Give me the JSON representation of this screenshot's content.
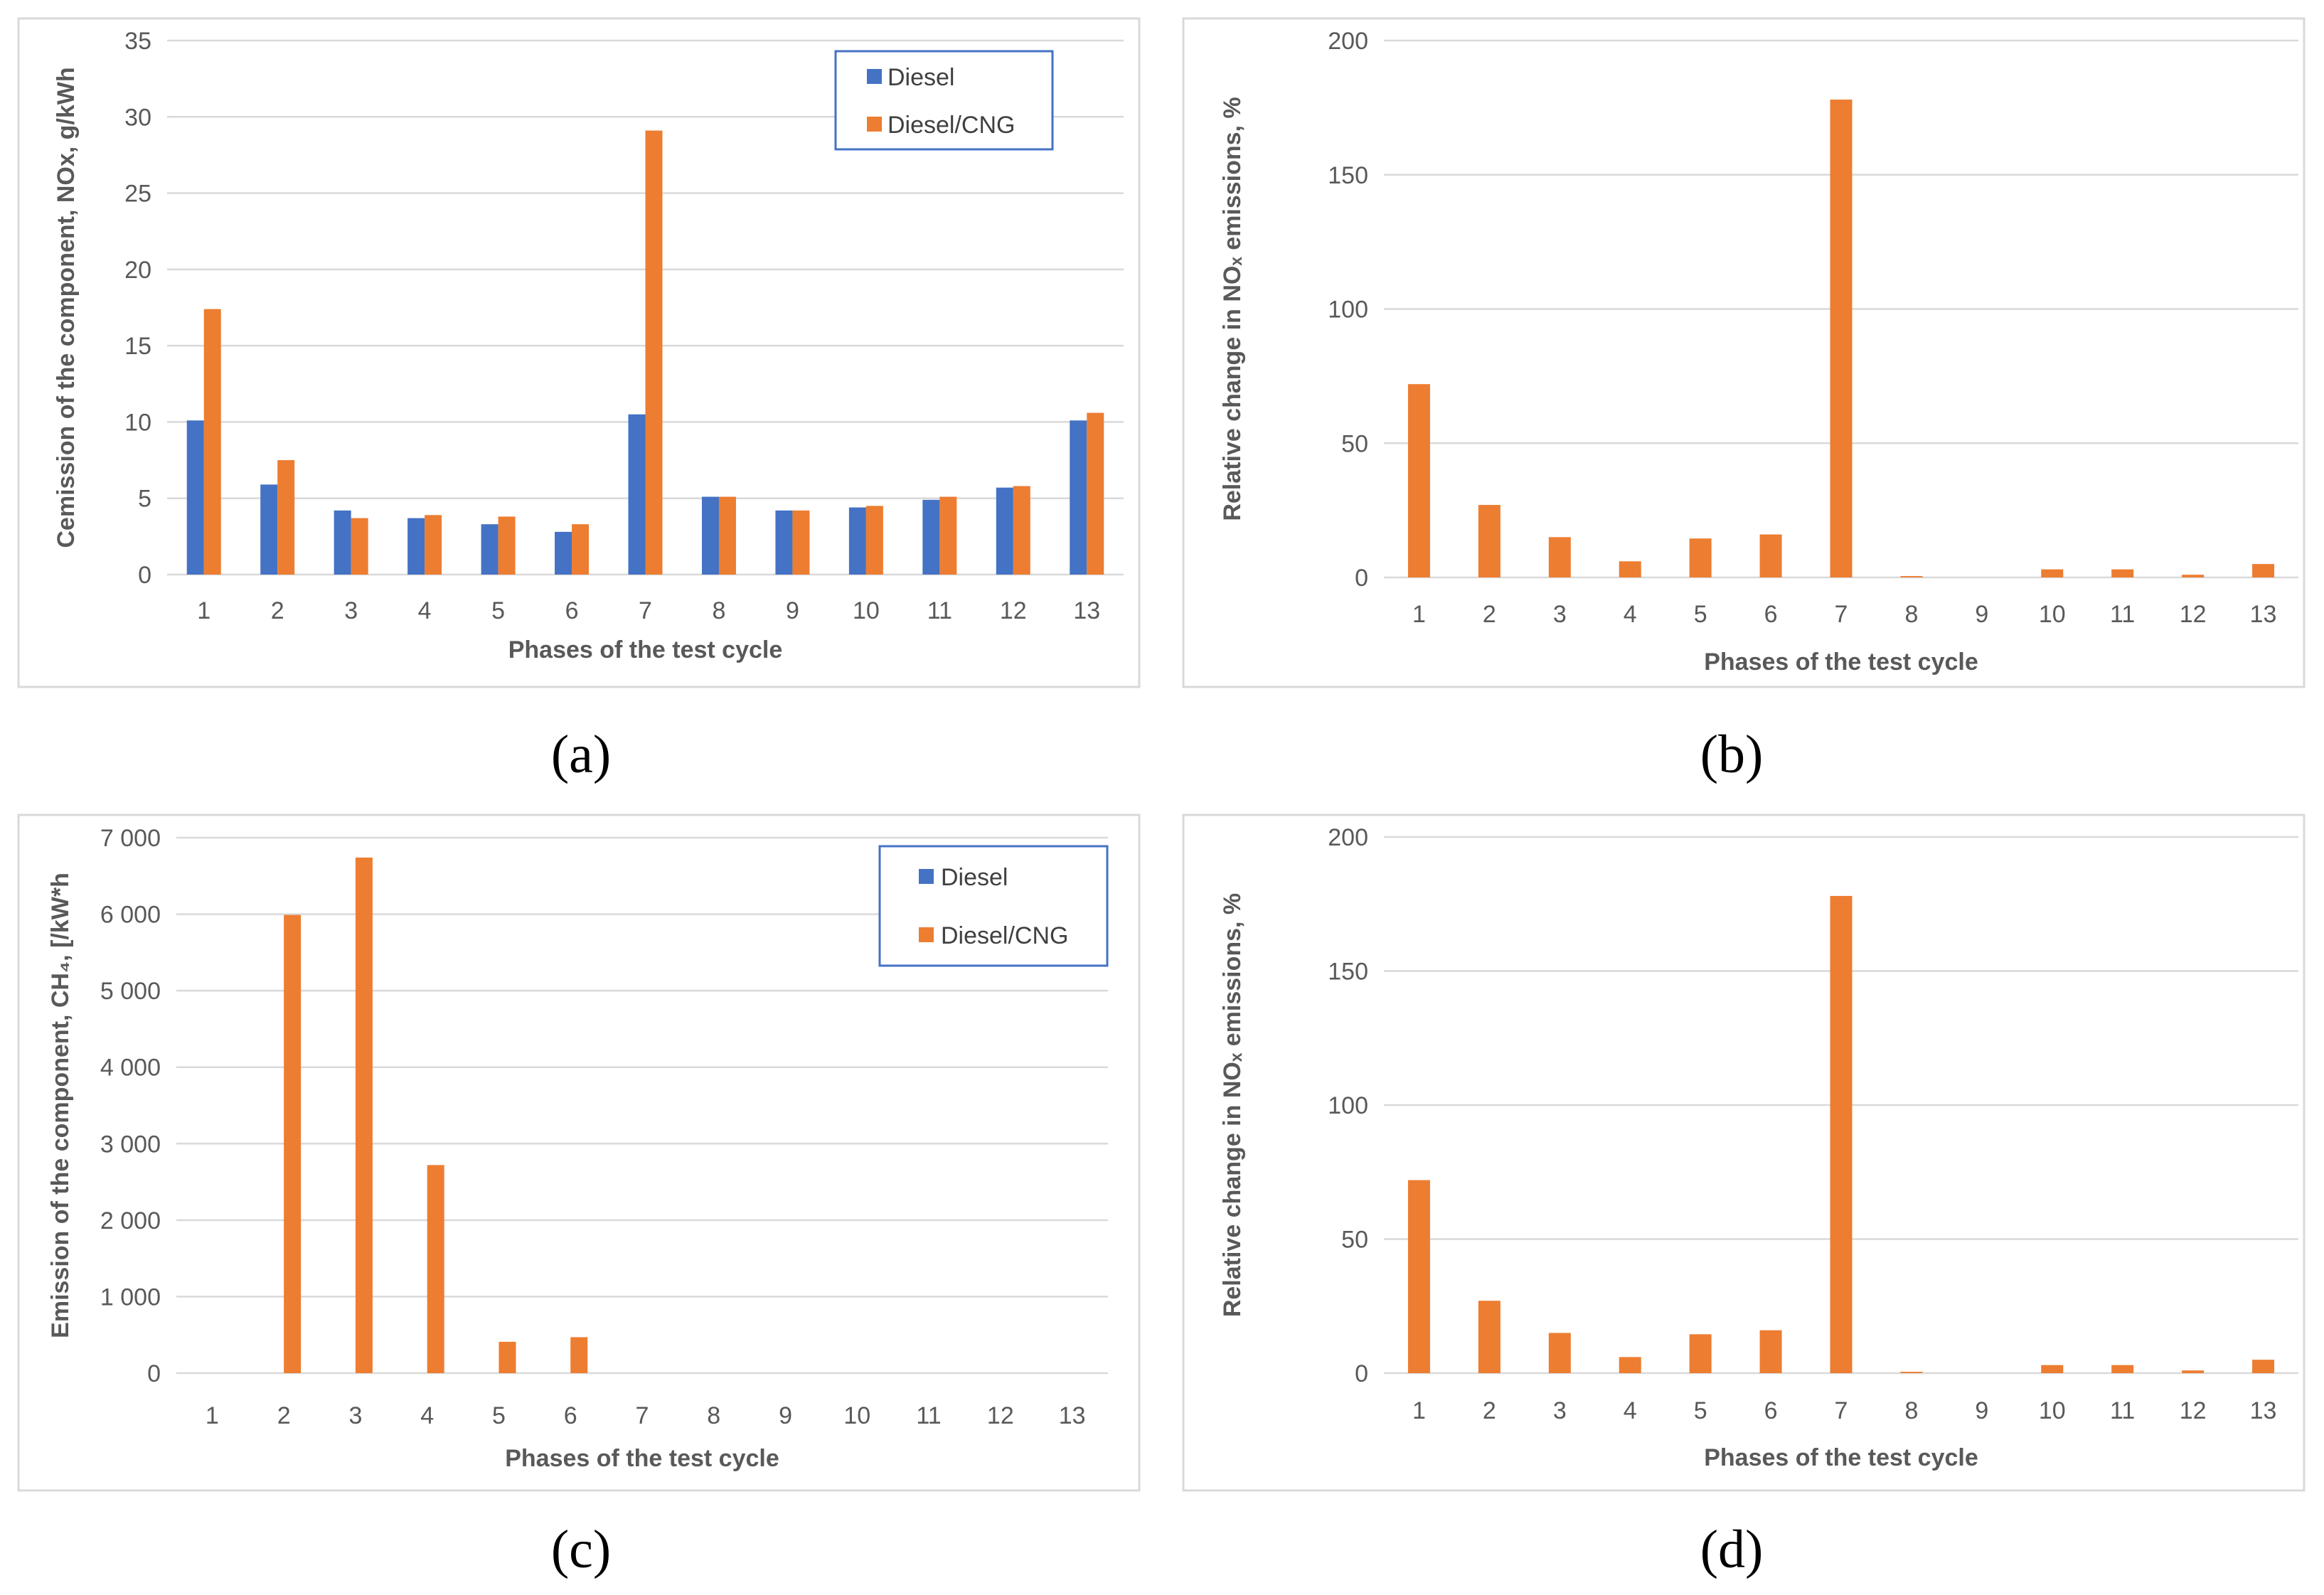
{
  "colors": {
    "diesel": "#4472C4",
    "diesel_cng": "#ED7D31",
    "grid": "#d9d9d9",
    "text": "#595959"
  },
  "chart_data": [
    {
      "id": "a",
      "caption": "(a)",
      "type": "bar",
      "title": "",
      "xlabel": "Phases of the test cycle",
      "ylabel": "Cemission of the component,  NOx, g/kWh",
      "ylim": [
        0,
        35
      ],
      "yticks": [
        0,
        5,
        10,
        15,
        20,
        25,
        30,
        35
      ],
      "ytick_labels": [
        "0",
        "5",
        "10",
        "15",
        "20",
        "25",
        "30",
        "35"
      ],
      "categories": [
        "1",
        "2",
        "3",
        "4",
        "5",
        "6",
        "7",
        "8",
        "9",
        "10",
        "11",
        "12",
        "13"
      ],
      "legend": {
        "position": "top-right",
        "entries": [
          "Diesel",
          "Diesel/CNG"
        ]
      },
      "series": [
        {
          "name": "Diesel",
          "color": "#4472C4",
          "values": [
            10.1,
            5.9,
            4.2,
            3.7,
            3.3,
            2.8,
            10.5,
            5.1,
            4.2,
            4.4,
            4.9,
            5.7,
            10.1
          ]
        },
        {
          "name": "Diesel/CNG",
          "color": "#ED7D31",
          "values": [
            17.4,
            7.5,
            3.7,
            3.9,
            3.8,
            3.3,
            29.1,
            5.1,
            4.2,
            4.5,
            5.1,
            5.8,
            10.6
          ]
        }
      ]
    },
    {
      "id": "b",
      "caption": "(b)",
      "type": "bar",
      "title": "",
      "xlabel": "Phases of the test cycle",
      "ylabel": "Relative change in NOₓ emissions, %",
      "ylim": [
        0,
        200
      ],
      "yticks": [
        0,
        50,
        100,
        150,
        200
      ],
      "ytick_labels": [
        "0",
        "50",
        "100",
        "150",
        "200"
      ],
      "categories": [
        "1",
        "2",
        "3",
        "4",
        "5",
        "6",
        "7",
        "8",
        "9",
        "10",
        "11",
        "12",
        "13"
      ],
      "legend": null,
      "series": [
        {
          "name": "Relative change",
          "color": "#ED7D31",
          "values": [
            72,
            27,
            15,
            6,
            14.5,
            16,
            178,
            0.5,
            0,
            3,
            3,
            1,
            5
          ]
        }
      ]
    },
    {
      "id": "c",
      "caption": "(c)",
      "type": "bar",
      "title": "",
      "xlabel": "Phases of the test cycle",
      "ylabel": "Emission of the component, CH₄, [/kW*h",
      "ylim": [
        0,
        7000
      ],
      "yticks": [
        0,
        1000,
        2000,
        3000,
        4000,
        5000,
        6000,
        7000
      ],
      "ytick_labels": [
        "0",
        "1 000",
        "2 000",
        "3 000",
        "4 000",
        "5 000",
        "6 000",
        "7 000"
      ],
      "categories": [
        "1",
        "2",
        "3",
        "4",
        "5",
        "6",
        "7",
        "8",
        "9",
        "10",
        "11",
        "12",
        "13"
      ],
      "legend": {
        "position": "top-right",
        "entries": [
          "Diesel",
          "Diesel/CNG"
        ]
      },
      "series": [
        {
          "name": "Diesel",
          "color": "#4472C4",
          "values": [
            0,
            0,
            0,
            0,
            0,
            0,
            0,
            0,
            0,
            0,
            0,
            0,
            0
          ]
        },
        {
          "name": "Diesel/CNG",
          "color": "#ED7D31",
          "values": [
            0,
            5990,
            6740,
            2720,
            410,
            470,
            0,
            0,
            0,
            0,
            0,
            0,
            0
          ]
        }
      ]
    },
    {
      "id": "d",
      "caption": "(d)",
      "type": "bar",
      "title": "",
      "xlabel": "Phases of the test cycle",
      "ylabel": "Relative change in NOₓ emissions, %",
      "ylim": [
        0,
        200
      ],
      "yticks": [
        0,
        50,
        100,
        150,
        200
      ],
      "ytick_labels": [
        "0",
        "50",
        "100",
        "150",
        "200"
      ],
      "categories": [
        "1",
        "2",
        "3",
        "4",
        "5",
        "6",
        "7",
        "8",
        "9",
        "10",
        "11",
        "12",
        "13"
      ],
      "legend": null,
      "series": [
        {
          "name": "Relative change",
          "color": "#ED7D31",
          "values": [
            72,
            27,
            15,
            6,
            14.5,
            16,
            178,
            0.5,
            0,
            3,
            3,
            1,
            5
          ]
        }
      ]
    }
  ]
}
